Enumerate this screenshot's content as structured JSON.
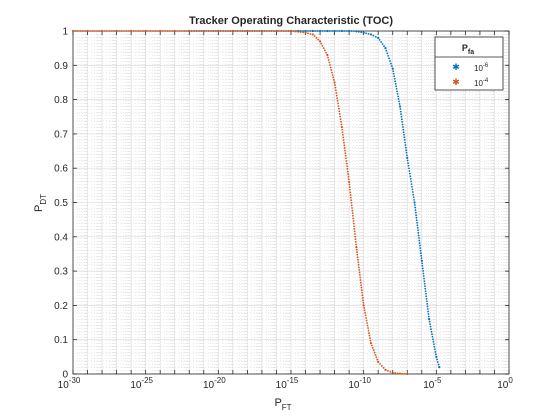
{
  "colors": {
    "series1": "#0072BD",
    "series2": "#D95319",
    "grid": "#d9d9d9",
    "axis": "#262626"
  },
  "chart_data": {
    "type": "scatter",
    "title": "Tracker Operating Characteristic (TOC)",
    "xlabel_main": "P",
    "xlabel_sub": "FT",
    "ylabel_main": "P",
    "ylabel_sub": "DT",
    "xscale": "log",
    "xlim_exponent": [
      -30,
      0
    ],
    "ylim": [
      0,
      1
    ],
    "grid": "on (major solid, minor dotted)",
    "x_ticks": [
      {
        "base": "10",
        "exp": "-30",
        "value": -30
      },
      {
        "base": "10",
        "exp": "-25",
        "value": -25
      },
      {
        "base": "10",
        "exp": "-20",
        "value": -20
      },
      {
        "base": "10",
        "exp": "-15",
        "value": -15
      },
      {
        "base": "10",
        "exp": "-10",
        "value": -10
      },
      {
        "base": "10",
        "exp": "-5",
        "value": -5
      },
      {
        "base": "10",
        "exp": "0",
        "value": 0
      }
    ],
    "y_ticks": [
      "0",
      "0.1",
      "0.2",
      "0.3",
      "0.4",
      "0.5",
      "0.6",
      "0.7",
      "0.8",
      "0.9",
      "1"
    ],
    "legend": {
      "title_main": "P",
      "title_sub": "fa",
      "placement": "top-right",
      "entries": [
        {
          "base": "10",
          "exp": "-6"
        },
        {
          "base": "10",
          "exp": "-4"
        }
      ]
    },
    "series": [
      {
        "log10_x": [
          -22.0,
          -21.0,
          -20.0,
          -19.0,
          -18.0,
          -17.0,
          -16.0,
          -15.0,
          -14.5,
          -14.0,
          -13.5,
          -13.0,
          -12.5,
          -12.0,
          -11.5,
          -11.0,
          -10.5,
          -10.0,
          -9.5,
          -9.0,
          -8.5,
          -8.0,
          -7.5,
          -7.0,
          -6.5,
          -6.0,
          -5.5,
          -5.0,
          -4.8
        ],
        "y": [
          1.0,
          1.0,
          1.0,
          1.0,
          1.0,
          1.0,
          1.0,
          1.0,
          1.0,
          1.0,
          1.0,
          1.0,
          1.0,
          1.0,
          1.0,
          1.0,
          0.999,
          0.995,
          0.99,
          0.98,
          0.95,
          0.89,
          0.78,
          0.63,
          0.5,
          0.33,
          0.16,
          0.05,
          0.02
        ]
      },
      {
        "log10_x": [
          -30.0,
          -29.0,
          -28.0,
          -27.0,
          -26.0,
          -25.0,
          -24.0,
          -23.0,
          -22.0,
          -21.0,
          -20.0,
          -19.0,
          -18.0,
          -17.0,
          -16.0,
          -15.0,
          -14.0,
          -13.5,
          -13.0,
          -12.5,
          -12.0,
          -11.5,
          -11.0,
          -10.5,
          -10.0,
          -9.5,
          -9.0,
          -8.5,
          -8.0,
          -7.5,
          -7.0
        ],
        "y": [
          1.0,
          1.0,
          1.0,
          1.0,
          1.0,
          1.0,
          1.0,
          1.0,
          1.0,
          1.0,
          1.0,
          1.0,
          1.0,
          1.0,
          1.0,
          1.0,
          0.995,
          0.99,
          0.97,
          0.93,
          0.85,
          0.72,
          0.56,
          0.37,
          0.2,
          0.09,
          0.035,
          0.012,
          0.004,
          0.001,
          0.0
        ]
      }
    ]
  }
}
